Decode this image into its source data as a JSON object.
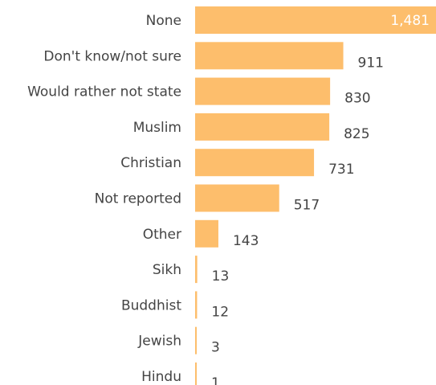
{
  "chart_data": {
    "type": "bar",
    "orientation": "horizontal",
    "categories": [
      "None",
      "Don't know/not sure",
      "Would rather not state",
      "Muslim",
      "Christian",
      "Not reported",
      "Other",
      "Sikh",
      "Buddhist",
      "Jewish",
      "Hindu"
    ],
    "values": [
      1481,
      911,
      830,
      825,
      731,
      517,
      143,
      13,
      12,
      3,
      1
    ],
    "value_labels": [
      "1,481",
      "911",
      "830",
      "825",
      "731",
      "517",
      "143",
      "13",
      "12",
      "3",
      "1"
    ],
    "bar_color": "#FDBE6C",
    "title": "",
    "xlabel": "",
    "ylabel": "",
    "xlim": [
      0,
      1481
    ],
    "grid": false,
    "legend": "none"
  }
}
